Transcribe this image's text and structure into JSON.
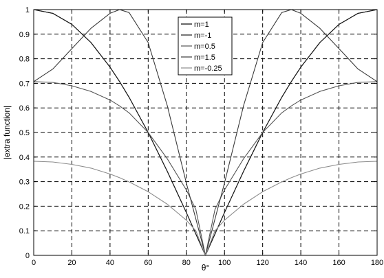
{
  "chart_data": {
    "type": "line",
    "xlabel": "θ°",
    "ylabel": "|extra function|",
    "xlim": [
      0,
      180
    ],
    "ylim": [
      0,
      1
    ],
    "xticks": [
      0,
      20,
      40,
      60,
      80,
      100,
      120,
      140,
      160,
      180
    ],
    "yticks": [
      0,
      0.1,
      0.2,
      0.3,
      0.4,
      0.5,
      0.6,
      0.7,
      0.8,
      0.9,
      1
    ],
    "grid": true,
    "legend_position": "top-center",
    "colors": [
      "#000000",
      "#1a1a1a",
      "#555555",
      "#3a3a3a",
      "#8c8c8c"
    ],
    "x": [
      0,
      10,
      20,
      30,
      40,
      45,
      50,
      60,
      70,
      80,
      85,
      90,
      95,
      100,
      110,
      120,
      130,
      135,
      140,
      150,
      160,
      170,
      180
    ],
    "series": [
      {
        "name": "m=1",
        "values": [
          1,
          0.985,
          0.94,
          0.866,
          0.766,
          0.707,
          0.643,
          0.5,
          0.342,
          0.174,
          0.087,
          0,
          0.087,
          0.174,
          0.342,
          0.5,
          0.643,
          0.707,
          0.766,
          0.866,
          0.94,
          0.985,
          1
        ]
      },
      {
        "name": "m=-1",
        "values": [
          1,
          0.985,
          0.94,
          0.866,
          0.766,
          0.707,
          0.643,
          0.5,
          0.342,
          0.174,
          0.087,
          0,
          0.087,
          0.174,
          0.342,
          0.5,
          0.643,
          0.707,
          0.766,
          0.866,
          0.94,
          0.985,
          1
        ]
      },
      {
        "name": "m=0.5",
        "values": [
          0.707,
          0.704,
          0.69,
          0.667,
          0.632,
          0.608,
          0.58,
          0.5,
          0.393,
          0.266,
          0.187,
          0,
          0.187,
          0.266,
          0.393,
          0.5,
          0.58,
          0.608,
          0.632,
          0.667,
          0.69,
          0.704,
          0.707
        ]
      },
      {
        "name": "m=1.5",
        "values": [
          0.707,
          0.758,
          0.841,
          0.924,
          0.985,
          1,
          0.988,
          0.866,
          0.609,
          0.294,
          0.148,
          0,
          0.148,
          0.294,
          0.609,
          0.866,
          0.988,
          1,
          0.985,
          0.924,
          0.841,
          0.758,
          0.707
        ]
      },
      {
        "name": "m=-0.25",
        "values": [
          0.383,
          0.38,
          0.37,
          0.355,
          0.331,
          0.316,
          0.299,
          0.259,
          0.208,
          0.143,
          0.1,
          0,
          0.1,
          0.143,
          0.208,
          0.259,
          0.299,
          0.316,
          0.331,
          0.355,
          0.37,
          0.38,
          0.383
        ]
      }
    ]
  }
}
